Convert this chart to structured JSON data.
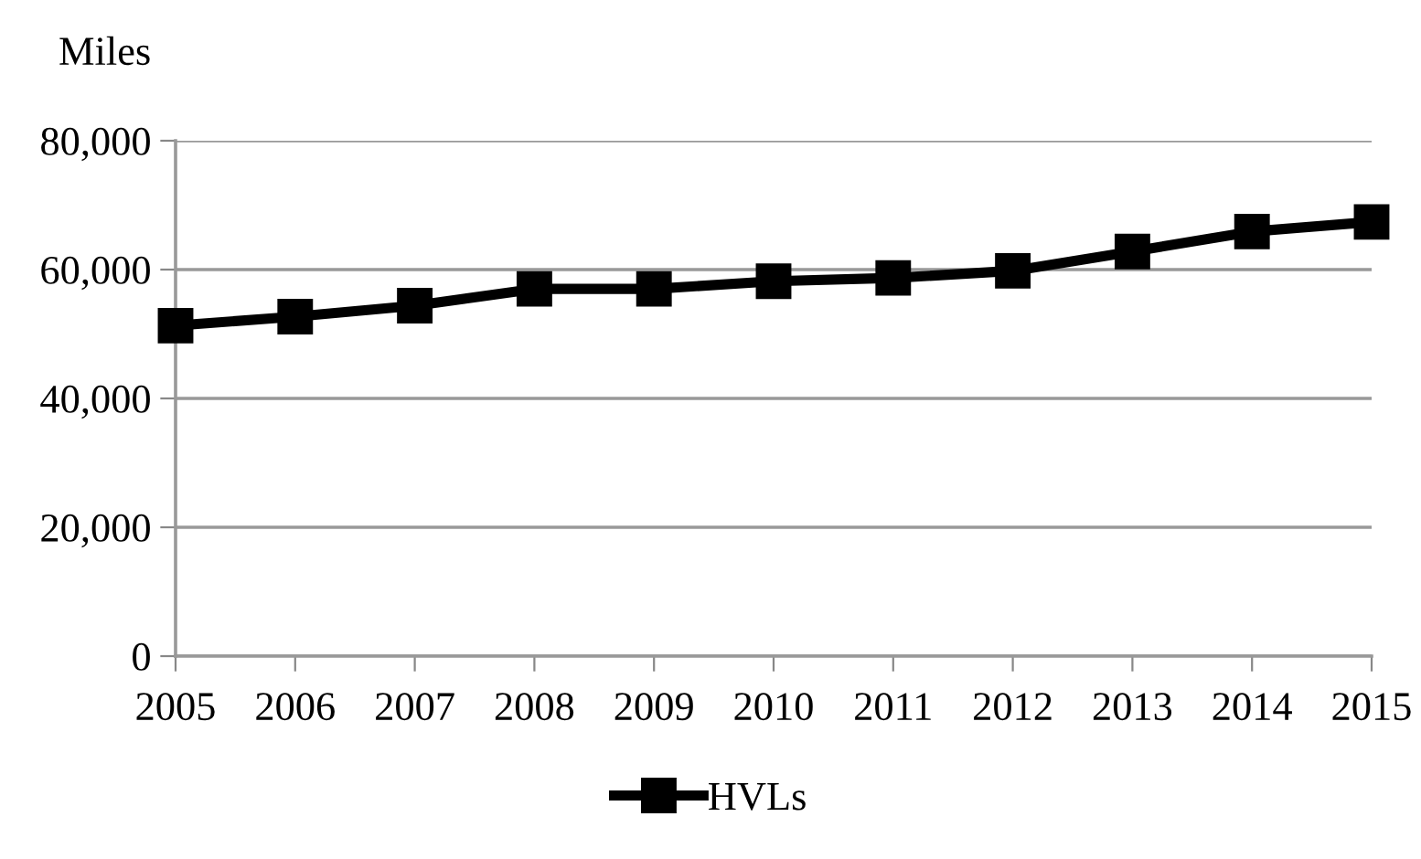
{
  "chart_data": {
    "type": "line",
    "ylabel": "Miles",
    "categories": [
      "2005",
      "2006",
      "2007",
      "2008",
      "2009",
      "2010",
      "2011",
      "2012",
      "2013",
      "2014",
      "2015"
    ],
    "series": [
      {
        "name": "HVLs",
        "color": "#000000",
        "values": [
          51300,
          52700,
          54400,
          57000,
          57000,
          58200,
          58700,
          59800,
          62800,
          65900,
          67400
        ]
      }
    ],
    "ylim": [
      0,
      80000
    ],
    "yticks": [
      {
        "value": 0,
        "label": "0"
      },
      {
        "value": 20000,
        "label": "20,000"
      },
      {
        "value": 40000,
        "label": "40,000"
      },
      {
        "value": 60000,
        "label": "60,000"
      },
      {
        "value": 80000,
        "label": "80,000"
      }
    ],
    "grid": "y",
    "legend": "bottom",
    "marker": "square",
    "line_style": "solid"
  }
}
